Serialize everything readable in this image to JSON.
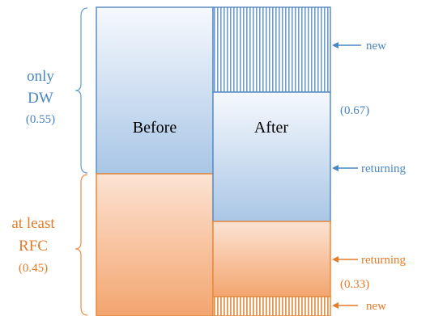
{
  "left_group_top": {
    "label_line1": "only",
    "label_line2": "DW",
    "share": "(0.55)",
    "color": "#4a86c0"
  },
  "left_group_bottom": {
    "label_line1": "at least",
    "label_line2": "RFC",
    "share": "(0.45)",
    "color": "#e47c2a"
  },
  "columns": {
    "before": "Before",
    "after": "After"
  },
  "right_annotations": {
    "new_top": "new",
    "returning_top": "returning",
    "share_top": "(0.67)",
    "returning_bottom": "returning",
    "share_bottom": "(0.33)",
    "new_bottom": "new"
  },
  "colors": {
    "blue": "#4a86c0",
    "orange": "#e47c2a",
    "blue_border": "#5b8ec4",
    "orange_border": "#e88a3c"
  }
}
